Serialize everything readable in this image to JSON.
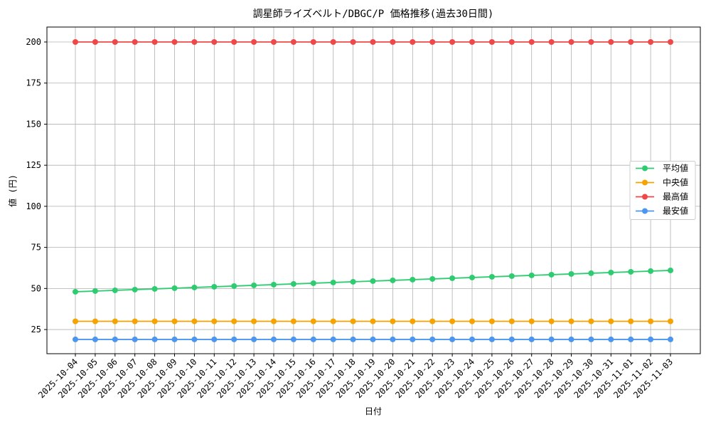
{
  "chart_data": {
    "type": "line",
    "title": "調星師ライズベルト/DBGC/P 価格推移(過去30日間)",
    "x_label": "日付",
    "y_label": "値 (円)",
    "categories": [
      "2025-10-04",
      "2025-10-05",
      "2025-10-06",
      "2025-10-07",
      "2025-10-08",
      "2025-10-09",
      "2025-10-10",
      "2025-10-11",
      "2025-10-12",
      "2025-10-13",
      "2025-10-14",
      "2025-10-15",
      "2025-10-16",
      "2025-10-17",
      "2025-10-18",
      "2025-10-19",
      "2025-10-20",
      "2025-10-21",
      "2025-10-22",
      "2025-10-23",
      "2025-10-24",
      "2025-10-25",
      "2025-10-26",
      "2025-10-27",
      "2025-10-28",
      "2025-10-29",
      "2025-10-30",
      "2025-10-31",
      "2025-11-01",
      "2025-11-02",
      "2025-11-03"
    ],
    "series": [
      {
        "name": "平均値",
        "color": "#2ecc71",
        "values": [
          48,
          48.43,
          48.87,
          49.3,
          49.73,
          50.17,
          50.6,
          51.03,
          51.47,
          51.9,
          52.33,
          52.77,
          53.2,
          53.63,
          54.07,
          54.5,
          54.93,
          55.37,
          55.8,
          56.23,
          56.67,
          57.1,
          57.53,
          57.97,
          58.4,
          58.83,
          59.27,
          59.7,
          60.13,
          60.57,
          61
        ]
      },
      {
        "name": "中央値",
        "color": "#f5a300",
        "values": [
          30,
          30,
          30,
          30,
          30,
          30,
          30,
          30,
          30,
          30,
          30,
          30,
          30,
          30,
          30,
          30,
          30,
          30,
          30,
          30,
          30,
          30,
          30,
          30,
          30,
          30,
          30,
          30,
          30,
          30,
          30
        ]
      },
      {
        "name": "最高値",
        "color": "#f04848",
        "values": [
          200,
          200,
          200,
          200,
          200,
          200,
          200,
          200,
          200,
          200,
          200,
          200,
          200,
          200,
          200,
          200,
          200,
          200,
          200,
          200,
          200,
          200,
          200,
          200,
          200,
          200,
          200,
          200,
          200,
          200,
          200
        ]
      },
      {
        "name": "最安値",
        "color": "#4a96f0",
        "values": [
          19,
          19,
          19,
          19,
          19,
          19,
          19,
          19,
          19,
          19,
          19,
          19,
          19,
          19,
          19,
          19,
          19,
          19,
          19,
          19,
          19,
          19,
          19,
          19,
          19,
          19,
          19,
          19,
          19,
          19,
          19
        ]
      }
    ],
    "ylim": [
      10.3,
      209.1
    ],
    "yticks": [
      25,
      50,
      75,
      100,
      125,
      150,
      175,
      200
    ],
    "grid": true,
    "legend": "center right"
  }
}
